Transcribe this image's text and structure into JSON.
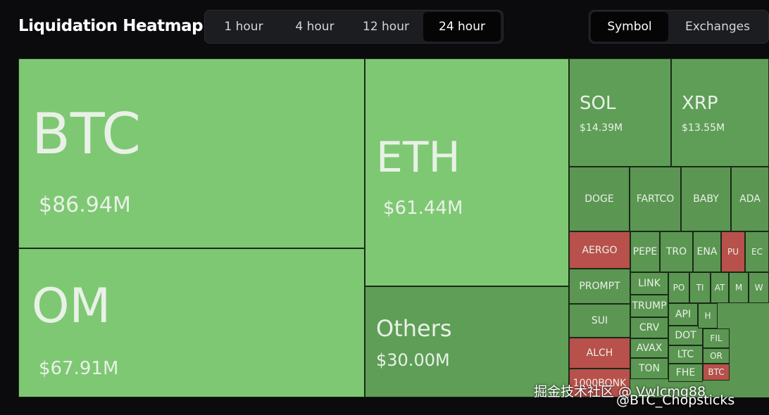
{
  "header": {
    "title": "Liquidation Heatmap",
    "time_tabs": [
      "1 hour",
      "4 hour",
      "12 hour",
      "24 hour"
    ],
    "selected_time_tab": 3,
    "view_tabs": [
      "Symbol",
      "Exchanges"
    ],
    "selected_view_tab": 0
  },
  "tiles": [
    {
      "label": "BTC",
      "value": "$86.94M",
      "color": "#7ec873"
    },
    {
      "label": "OM",
      "value": "$67.91M",
      "color": "#7ec873"
    },
    {
      "label": "ETH",
      "value": "$61.44M",
      "color": "#7ec873"
    },
    {
      "label": "Others",
      "value": "$30.00M",
      "color": "#5f9e57"
    },
    {
      "label": "SOL",
      "value": "$14.39M",
      "color": "#5f9e57"
    },
    {
      "label": "XRP",
      "value": "$13.55M",
      "color": "#5f9e57"
    },
    {
      "label": "DOGE",
      "color": "#5b9652"
    },
    {
      "label": "FARTCO",
      "color": "#5b9652"
    },
    {
      "label": "BABY",
      "color": "#5b9652"
    },
    {
      "label": "ADA",
      "color": "#5b9652"
    },
    {
      "label": "AERGO",
      "color": "#b8504b"
    },
    {
      "label": "PEPE",
      "color": "#5b9652"
    },
    {
      "label": "TRO",
      "color": "#5b9652"
    },
    {
      "label": "ENA",
      "color": "#5b9652"
    },
    {
      "label": "PU",
      "color": "#b8504b"
    },
    {
      "label": "EC",
      "color": "#5b9652"
    },
    {
      "label": "PROMPT",
      "color": "#5b9652"
    },
    {
      "label": "SUI",
      "color": "#5b9652"
    },
    {
      "label": "ALCH",
      "color": "#b8504b"
    },
    {
      "label": "1000BONK",
      "color": "#b8504b"
    },
    {
      "label": "LINK",
      "color": "#5b9652"
    },
    {
      "label": "TRUMP",
      "color": "#5b9652"
    },
    {
      "label": "CRV",
      "color": "#5b9652"
    },
    {
      "label": "AVAX",
      "color": "#5b9652"
    },
    {
      "label": "TON",
      "color": "#5b9652"
    },
    {
      "label": "PO",
      "color": "#5b9652"
    },
    {
      "label": "TI",
      "color": "#5b9652"
    },
    {
      "label": "AT",
      "color": "#5b9652"
    },
    {
      "label": "M",
      "color": "#5b9652"
    },
    {
      "label": "W",
      "color": "#5b9652"
    },
    {
      "label": "API",
      "color": "#5b9652"
    },
    {
      "label": "DOT",
      "color": "#5b9652"
    },
    {
      "label": "LTC",
      "color": "#5b9652"
    },
    {
      "label": "FHE",
      "color": "#5b9652"
    },
    {
      "label": "H",
      "color": "#5b9652"
    },
    {
      "label": "FIL",
      "color": "#5b9652"
    },
    {
      "label": "OR",
      "color": "#5b9652"
    },
    {
      "label": "BTC",
      "color": "#b8504b"
    }
  ],
  "watermark": [
    "掘金技术社区 @ Vwlcmg88",
    "@BTC_Chopsticks"
  ]
}
